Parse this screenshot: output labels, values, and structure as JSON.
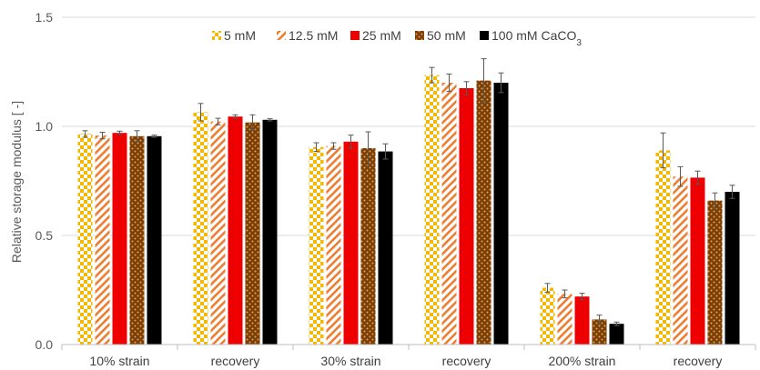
{
  "chart_data": {
    "type": "bar",
    "title": "",
    "xlabel": "",
    "ylabel": "Relative storage modulus [ -]",
    "ylim": [
      0,
      1.5
    ],
    "yticks": [
      "0.0",
      "0.5",
      "1.0",
      "1.5"
    ],
    "grid": true,
    "legend_position": "top",
    "categories": [
      "10% strain",
      "recovery",
      "30% strain",
      "recovery",
      "200% strain",
      "recovery"
    ],
    "series": [
      {
        "name": "5 mM",
        "color": "#f5b800",
        "pattern": "checker",
        "values": [
          0.965,
          1.065,
          0.905,
          1.235,
          0.26,
          0.89
        ],
        "errors": [
          0.015,
          0.04,
          0.02,
          0.035,
          0.02,
          0.08
        ]
      },
      {
        "name": "12.5 mM",
        "color": "#ed7d31",
        "pattern": "diagonal",
        "values": [
          0.958,
          1.022,
          0.91,
          1.2,
          0.232,
          0.77
        ],
        "errors": [
          0.015,
          0.015,
          0.015,
          0.04,
          0.018,
          0.045
        ]
      },
      {
        "name": "25 mM",
        "color": "#ee0000",
        "pattern": "solid",
        "values": [
          0.97,
          1.045,
          0.93,
          1.175,
          0.22,
          0.765
        ],
        "errors": [
          0.008,
          0.008,
          0.03,
          0.03,
          0.015,
          0.03
        ]
      },
      {
        "name": "50 mM",
        "color": "#7b3f00",
        "pattern": "dots",
        "values": [
          0.955,
          1.018,
          0.9,
          1.21,
          0.115,
          0.66
        ],
        "errors": [
          0.025,
          0.035,
          0.075,
          0.1,
          0.02,
          0.035
        ]
      },
      {
        "name": "100 mM CaCO",
        "subscript": "3",
        "color": "#000000",
        "pattern": "solid",
        "values": [
          0.955,
          1.03,
          0.885,
          1.2,
          0.095,
          0.7
        ],
        "errors": [
          0.005,
          0.005,
          0.035,
          0.045,
          0.008,
          0.03
        ]
      }
    ]
  }
}
